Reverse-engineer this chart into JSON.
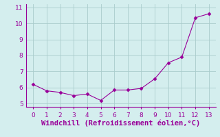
{
  "x": [
    0,
    1,
    2,
    3,
    4,
    5,
    6,
    7,
    8,
    9,
    10,
    11,
    12,
    13
  ],
  "y": [
    6.2,
    5.8,
    5.7,
    5.5,
    5.6,
    5.2,
    5.85,
    5.85,
    5.95,
    6.55,
    7.55,
    7.9,
    10.35,
    10.6
  ],
  "line_color": "#990099",
  "marker": "D",
  "marker_size": 2.5,
  "xlabel": "Windchill (Refroidissement éolien,°C)",
  "ylim": [
    4.8,
    11.2
  ],
  "xlim": [
    -0.5,
    13.5
  ],
  "yticks": [
    5,
    6,
    7,
    8,
    9,
    10,
    11
  ],
  "xticks": [
    0,
    1,
    2,
    3,
    4,
    5,
    6,
    7,
    8,
    9,
    10,
    11,
    12,
    13
  ],
  "bg_color": "#d4eeee",
  "grid_color": "#aacccc",
  "tick_color": "#990099",
  "label_color": "#990099",
  "tick_fontsize": 6.5,
  "xlabel_fontsize": 7.5,
  "spine_color": "#990099"
}
